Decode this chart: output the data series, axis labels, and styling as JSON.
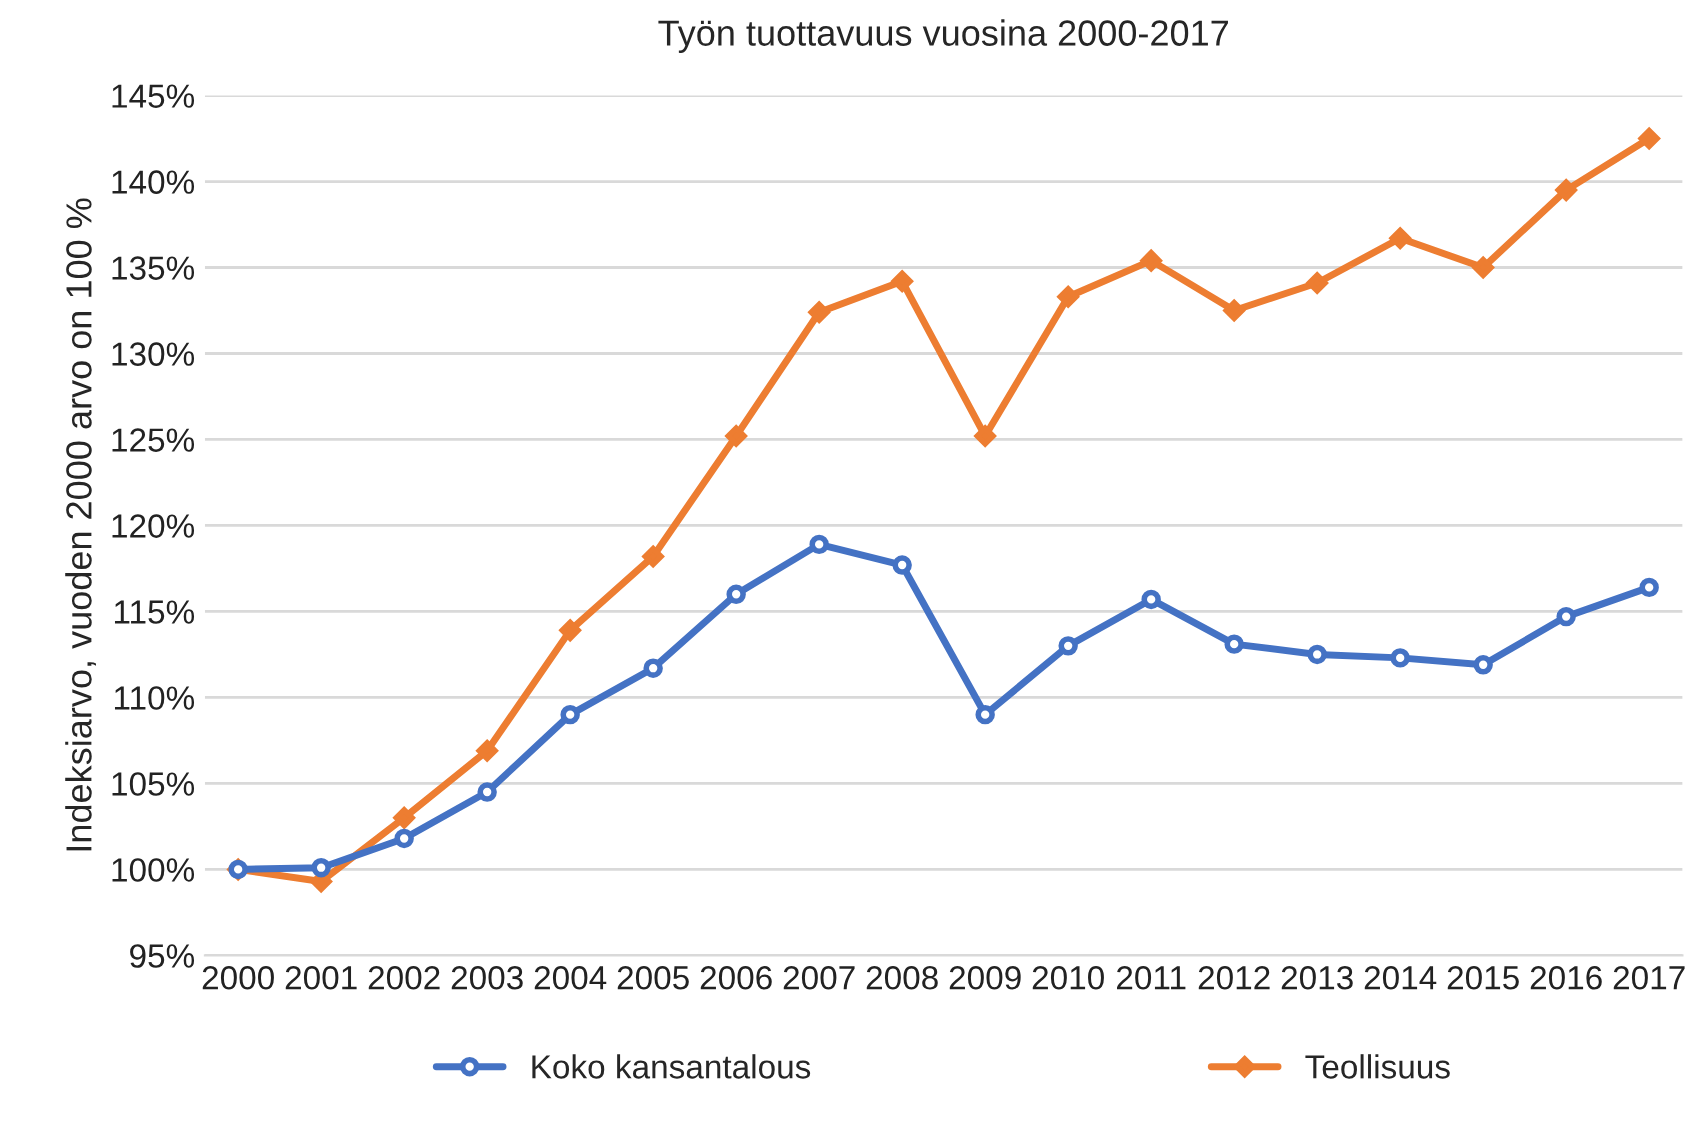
{
  "chart_data": {
    "type": "line",
    "title": "Työn tuottavuus vuosina 2000-2017",
    "ylabel": "Indeksiarvo, vuoden 2000 arvo on 100 %",
    "categories": [
      "2000",
      "2001",
      "2002",
      "2003",
      "2004",
      "2005",
      "2006",
      "2007",
      "2008",
      "2009",
      "2010",
      "2011",
      "2012",
      "2013",
      "2014",
      "2015",
      "2016",
      "2017"
    ],
    "series": [
      {
        "name": "Koko kansantalous",
        "color": "#4472c4",
        "marker": "circle",
        "values": [
          100,
          100.1,
          101.8,
          104.5,
          109.0,
          111.7,
          116.0,
          118.9,
          117.7,
          109.0,
          113.0,
          115.7,
          113.1,
          112.5,
          112.3,
          111.9,
          114.7,
          116.4
        ]
      },
      {
        "name": "Teollisuus",
        "color": "#ed7d31",
        "marker": "diamond",
        "values": [
          100,
          99.3,
          103.0,
          106.9,
          113.9,
          118.2,
          125.2,
          132.4,
          134.2,
          125.2,
          133.3,
          135.4,
          132.5,
          134.1,
          136.7,
          135.0,
          139.5,
          142.5
        ]
      }
    ],
    "ylim": [
      95,
      145
    ],
    "yticks": [
      {
        "value": 95,
        "label": "95%"
      },
      {
        "value": 100,
        "label": "100%"
      },
      {
        "value": 105,
        "label": "105%"
      },
      {
        "value": 110,
        "label": "110%"
      },
      {
        "value": 115,
        "label": "115%"
      },
      {
        "value": 120,
        "label": "120%"
      },
      {
        "value": 125,
        "label": "125%"
      },
      {
        "value": 130,
        "label": "130%"
      },
      {
        "value": 135,
        "label": "135%"
      },
      {
        "value": 140,
        "label": "140%"
      },
      {
        "value": 145,
        "label": "145%"
      }
    ],
    "grid": "y",
    "legend": "bottom",
    "line_style": "solid"
  }
}
